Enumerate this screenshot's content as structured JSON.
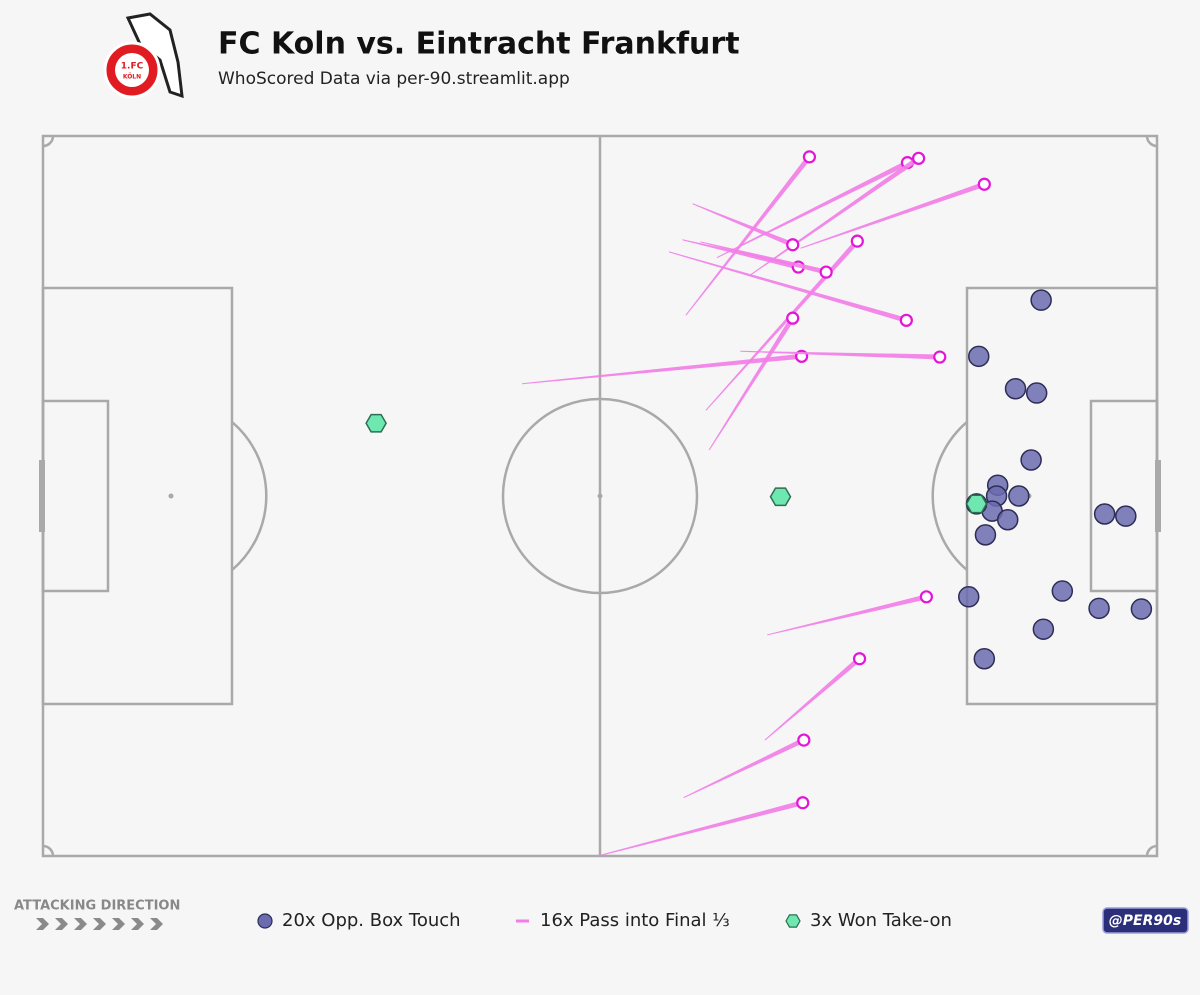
{
  "chart_data": {
    "type": "pitch",
    "title": "FC Koln vs. Eintracht Frankfurt",
    "subtitle": "WhoScored Data via per-90.streamlit.app",
    "logo": {
      "top": "1.FC",
      "bottom": "KÖLN"
    },
    "direction_label": "ATTACKING DIRECTION",
    "credit": "@PER90s",
    "xlim": [
      0,
      100
    ],
    "ylim": [
      0,
      100
    ],
    "series": [
      {
        "name": "20x Opp. Box Touch",
        "marker": "circle",
        "color": "#6b6bb0",
        "x": [
          89.6,
          84.0,
          87.3,
          89.2,
          88.7,
          85.7,
          85.6,
          87.6,
          85.2,
          86.6,
          84.6,
          95.3,
          97.2,
          83.1,
          91.5,
          94.8,
          98.6,
          89.8,
          84.5,
          83.8
        ],
        "y": [
          77.2,
          69.4,
          64.9,
          64.3,
          55.0,
          51.5,
          50.0,
          50.0,
          47.9,
          46.7,
          44.6,
          47.5,
          47.2,
          36.0,
          36.8,
          34.4,
          34.3,
          31.5,
          27.4,
          48.9
        ]
      },
      {
        "name": "16x Pass into Final ⅓",
        "marker": "line",
        "color": "#f27de8",
        "x_start": [
          57.7,
          60.5,
          63.5,
          68.0,
          58.3,
          59.5,
          57.4,
          59.0,
          59.8,
          56.2,
          43.0,
          62.6,
          65.0,
          64.8,
          57.5,
          49.8
        ],
        "y_start": [
          75.1,
          83.1,
          80.7,
          84.4,
          90.6,
          61.9,
          85.6,
          85.3,
          56.4,
          83.9,
          65.6,
          70.1,
          30.7,
          16.1,
          8.1,
          0.0
        ],
        "x": [
          68.8,
          77.6,
          78.6,
          84.5,
          67.3,
          73.1,
          67.8,
          70.3,
          67.3,
          77.5,
          68.1,
          80.5,
          79.3,
          73.3,
          68.3,
          68.2
        ],
        "y": [
          97.1,
          96.3,
          96.9,
          93.3,
          84.9,
          85.4,
          81.8,
          81.1,
          74.7,
          74.4,
          69.4,
          69.3,
          36.0,
          27.4,
          16.1,
          7.4
        ]
      },
      {
        "name": "3x Won Take-on",
        "marker": "hexagon",
        "color": "#6ee8b0",
        "x": [
          29.9,
          66.2,
          83.8
        ],
        "y": [
          60.1,
          49.9,
          48.9
        ]
      }
    ]
  }
}
